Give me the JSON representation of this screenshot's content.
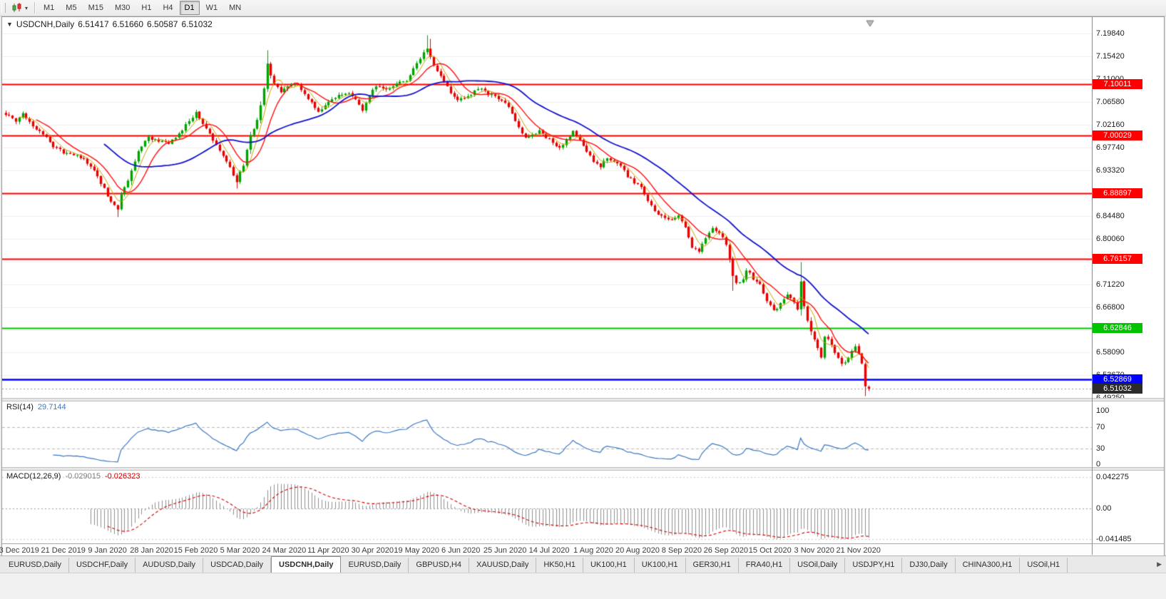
{
  "icons": {
    "dropdown_caret": "▾",
    "title_collapse": "▼",
    "tab_scroll_right": "▶"
  },
  "toolbar": {
    "timeframes": [
      "M1",
      "M5",
      "M15",
      "M30",
      "H1",
      "H4",
      "D1",
      "W1",
      "MN"
    ],
    "active_timeframe": "D1"
  },
  "chart": {
    "symbol_title": "USDCNH,Daily",
    "open": "6.51417",
    "high": "6.51660",
    "low": "6.50587",
    "close": "6.51032"
  },
  "chart_data": {
    "type": "candlestick",
    "symbol": "USDCNH",
    "period": "Daily",
    "background": "#ffffff",
    "up_color": "#00a300",
    "down_color": "#e60000",
    "y_min": 6.4925,
    "y_max": 7.1984,
    "y_axis_labels": [
      "7.19840",
      "7.15420",
      "7.11000",
      "7.06580",
      "7.02160",
      "6.97740",
      "6.93320",
      "6.88900",
      "6.84480",
      "6.80060",
      "6.75640",
      "6.71220",
      "6.66800",
      "6.62380",
      "6.58090",
      "6.53670",
      "6.49250"
    ],
    "x_labels": [
      {
        "text": "3 Dec 2019",
        "i": 4
      },
      {
        "text": "21 Dec 2019",
        "i": 17
      },
      {
        "text": "9 Jan 2020",
        "i": 30
      },
      {
        "text": "28 Jan 2020",
        "i": 43
      },
      {
        "text": "15 Feb 2020",
        "i": 56
      },
      {
        "text": "5 Mar 2020",
        "i": 69
      },
      {
        "text": "24 Mar 2020",
        "i": 82
      },
      {
        "text": "11 Apr 2020",
        "i": 95
      },
      {
        "text": "30 Apr 2020",
        "i": 108
      },
      {
        "text": "19 May 2020",
        "i": 121
      },
      {
        "text": "6 Jun 2020",
        "i": 134
      },
      {
        "text": "25 Jun 2020",
        "i": 147
      },
      {
        "text": "14 Jul 2020",
        "i": 160
      },
      {
        "text": "1 Aug 2020",
        "i": 173
      },
      {
        "text": "20 Aug 2020",
        "i": 186
      },
      {
        "text": "8 Sep 2020",
        "i": 199
      },
      {
        "text": "26 Sep 2020",
        "i": 212
      },
      {
        "text": "15 Oct 2020",
        "i": 225
      },
      {
        "text": "3 Nov 2020",
        "i": 238
      },
      {
        "text": "21 Nov 2020",
        "i": 251
      }
    ],
    "num_candles": 255,
    "close_path": [
      [
        0,
        7.042
      ],
      [
        3,
        7.03
      ],
      [
        5,
        7.044
      ],
      [
        8,
        7.02
      ],
      [
        11,
        7.004
      ],
      [
        14,
        6.98
      ],
      [
        17,
        6.968
      ],
      [
        20,
        6.964
      ],
      [
        23,
        6.954
      ],
      [
        26,
        6.934
      ],
      [
        29,
        6.898
      ],
      [
        31,
        6.872
      ],
      [
        33,
        6.858
      ],
      [
        34,
        6.886
      ],
      [
        36,
        6.914
      ],
      [
        39,
        6.97
      ],
      [
        42,
        6.998
      ],
      [
        45,
        6.99
      ],
      [
        48,
        6.984
      ],
      [
        51,
        7.006
      ],
      [
        54,
        7.028
      ],
      [
        56,
        7.044
      ],
      [
        58,
        7.024
      ],
      [
        60,
        7.004
      ],
      [
        63,
        6.972
      ],
      [
        66,
        6.94
      ],
      [
        68,
        6.912
      ],
      [
        70,
        6.944
      ],
      [
        72,
        7.0
      ],
      [
        74,
        7.03
      ],
      [
        76,
        7.09
      ],
      [
        77,
        7.14
      ],
      [
        79,
        7.1
      ],
      [
        81,
        7.084
      ],
      [
        83,
        7.096
      ],
      [
        86,
        7.102
      ],
      [
        89,
        7.07
      ],
      [
        92,
        7.048
      ],
      [
        95,
        7.066
      ],
      [
        98,
        7.078
      ],
      [
        101,
        7.084
      ],
      [
        103,
        7.07
      ],
      [
        105,
        7.05
      ],
      [
        107,
        7.078
      ],
      [
        109,
        7.096
      ],
      [
        112,
        7.09
      ],
      [
        115,
        7.1
      ],
      [
        118,
        7.108
      ],
      [
        120,
        7.13
      ],
      [
        122,
        7.15
      ],
      [
        124,
        7.172
      ],
      [
        126,
        7.138
      ],
      [
        128,
        7.116
      ],
      [
        131,
        7.084
      ],
      [
        133,
        7.068
      ],
      [
        135,
        7.074
      ],
      [
        138,
        7.086
      ],
      [
        140,
        7.092
      ],
      [
        142,
        7.08
      ],
      [
        144,
        7.076
      ],
      [
        147,
        7.066
      ],
      [
        149,
        7.044
      ],
      [
        151,
        7.014
      ],
      [
        153,
        6.998
      ],
      [
        155,
        7.004
      ],
      [
        157,
        7.008
      ],
      [
        159,
        6.998
      ],
      [
        161,
        6.988
      ],
      [
        163,
        6.976
      ],
      [
        165,
        6.994
      ],
      [
        167,
        7.008
      ],
      [
        169,
        6.99
      ],
      [
        171,
        6.97
      ],
      [
        173,
        6.95
      ],
      [
        175,
        6.942
      ],
      [
        177,
        6.956
      ],
      [
        179,
        6.95
      ],
      [
        181,
        6.944
      ],
      [
        183,
        6.922
      ],
      [
        185,
        6.91
      ],
      [
        187,
        6.9
      ],
      [
        189,
        6.874
      ],
      [
        191,
        6.852
      ],
      [
        193,
        6.844
      ],
      [
        196,
        6.838
      ],
      [
        198,
        6.846
      ],
      [
        200,
        6.822
      ],
      [
        202,
        6.786
      ],
      [
        204,
        6.778
      ],
      [
        206,
        6.8
      ],
      [
        208,
        6.82
      ],
      [
        210,
        6.814
      ],
      [
        212,
        6.792
      ],
      [
        214,
        6.73
      ],
      [
        215,
        6.714
      ],
      [
        217,
        6.724
      ],
      [
        218,
        6.742
      ],
      [
        220,
        6.724
      ],
      [
        222,
        6.712
      ],
      [
        224,
        6.682
      ],
      [
        226,
        6.66
      ],
      [
        228,
        6.674
      ],
      [
        230,
        6.692
      ],
      [
        232,
        6.678
      ],
      [
        233,
        6.662
      ],
      [
        234,
        6.718
      ],
      [
        235,
        6.67
      ],
      [
        236,
        6.642
      ],
      [
        237,
        6.624
      ],
      [
        239,
        6.59
      ],
      [
        240,
        6.572
      ],
      [
        241,
        6.61
      ],
      [
        243,
        6.598
      ],
      [
        244,
        6.58
      ],
      [
        246,
        6.558
      ],
      [
        248,
        6.568
      ],
      [
        250,
        6.594
      ],
      [
        252,
        6.56
      ],
      [
        253,
        6.515
      ],
      [
        254,
        6.5103
      ]
    ],
    "candle_overrides": [
      {
        "i": 33,
        "l": 6.843
      },
      {
        "i": 68,
        "l": 6.898
      },
      {
        "i": 77,
        "h": 7.166
      },
      {
        "i": 124,
        "h": 7.195
      },
      {
        "i": 125,
        "h": 7.188
      },
      {
        "i": 214,
        "l": 6.7
      },
      {
        "i": 234,
        "o": 6.664,
        "h": 6.7555,
        "l": 6.652,
        "c": 6.718
      },
      {
        "i": 253,
        "o": 6.558,
        "h": 6.561,
        "l": 6.496,
        "c": 6.515
      },
      {
        "i": 254,
        "o": 6.51417,
        "h": 6.5166,
        "l": 6.50587,
        "c": 6.51032
      }
    ],
    "horizontal_levels": [
      {
        "price": 7.10011,
        "badge": "7.10011",
        "color": "#ff0000",
        "width": 2
      },
      {
        "price": 7.00029,
        "badge": "7.00029",
        "color": "#ff0000",
        "width": 2
      },
      {
        "price": 6.88897,
        "badge": "6.88897",
        "color": "#ff0000",
        "width": 2
      },
      {
        "price": 6.76157,
        "badge": "6.76157",
        "color": "#ff0000",
        "width": 2
      },
      {
        "price": 6.62846,
        "badge": "6.62846",
        "color": "#00c400",
        "width": 2
      },
      {
        "price": 6.52869,
        "badge": "6.52869",
        "color": "#0000ff",
        "width": 2.5
      }
    ],
    "current_price": {
      "price": 6.51032,
      "badge": "6.51032",
      "color": "#2b2b2b"
    },
    "moving_averages": [
      {
        "period": 5,
        "color": "#c8a400",
        "width": 1
      },
      {
        "period": 10,
        "color": "#ff1010",
        "width": 1.4
      },
      {
        "period": 30,
        "color": "#1414cc",
        "width": 1.8
      }
    ],
    "indicators": {
      "rsi": {
        "name": "RSI(14)",
        "value": "29.7144",
        "color": "#3a78c3",
        "axis_labels": [
          "100",
          "70",
          "30",
          "0"
        ],
        "dashed_levels": [
          70,
          30
        ],
        "range": [
          0,
          100
        ]
      },
      "macd": {
        "name": "MACD(12,26,9)",
        "main_value": "-0.029015",
        "signal_value": "-0.026323",
        "histogram_color": "#8f8f8f",
        "signal_color": "#d40000",
        "axis_labels": [
          "0.042275",
          "0.00",
          "-0.041485"
        ],
        "range": [
          -0.041485,
          0.042275
        ]
      }
    }
  },
  "bottom_tabs": {
    "active_index": 4,
    "tabs": [
      "EURUSD,Daily",
      "USDCHF,Daily",
      "AUDUSD,Daily",
      "USDCAD,Daily",
      "USDCNH,Daily",
      "EURUSD,Daily",
      "GBPUSD,H4",
      "XAUUSD,Daily",
      "HK50,H1",
      "UK100,H1",
      "UK100,H1",
      "GER30,H1",
      "FRA40,H1",
      "USOil,Daily",
      "USDJPY,H1",
      "DJ30,Daily",
      "CHINA300,H1",
      "USOil,H1"
    ]
  }
}
